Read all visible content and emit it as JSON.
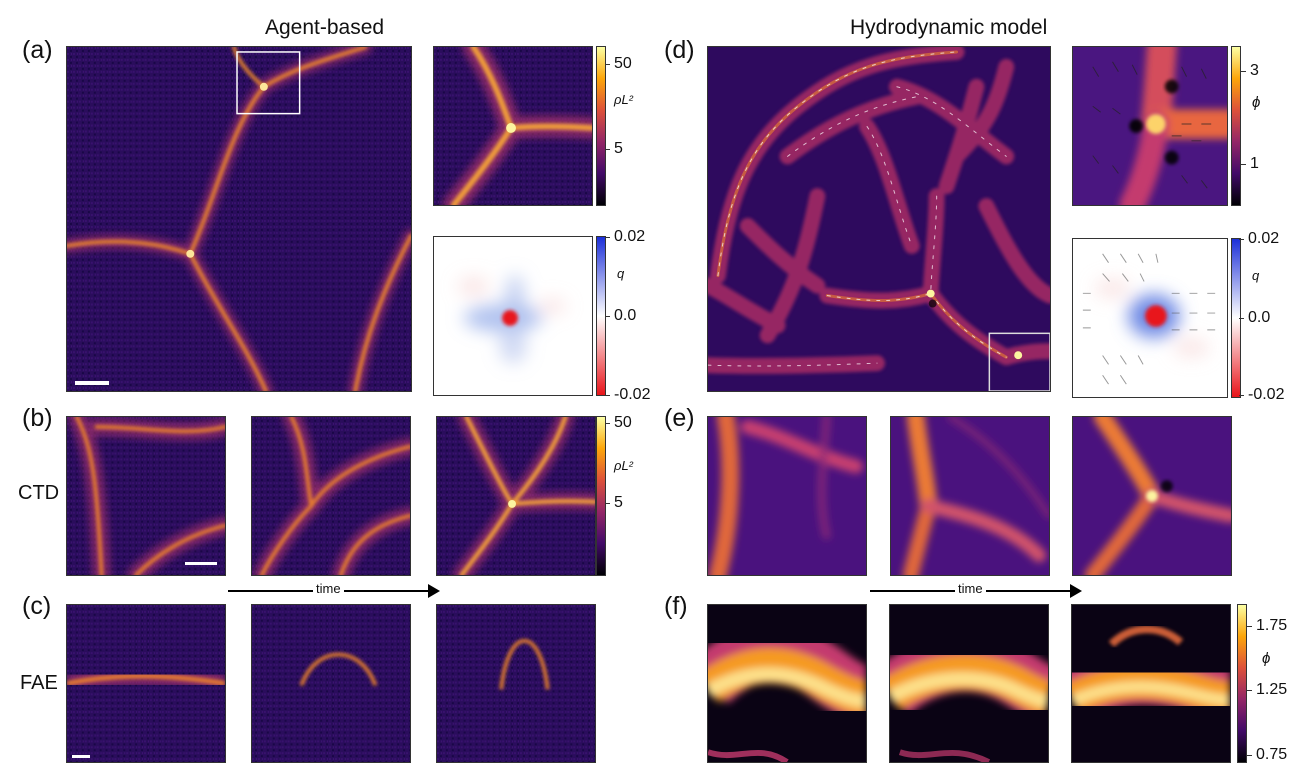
{
  "titles": {
    "left": "Agent-based",
    "right": "Hydrodynamic model"
  },
  "panel_labels": {
    "a": "(a)",
    "b": "(b)",
    "c": "(c)",
    "d": "(d)",
    "e": "(e)",
    "f": "(f)"
  },
  "row_labels": {
    "ctd": "CTD",
    "fae": "FAE"
  },
  "time_label": "time",
  "colorbars": {
    "a_density": {
      "label": "ρL²",
      "ticks": [
        "50",
        "5"
      ]
    },
    "a_q": {
      "label": "q",
      "ticks": [
        "0.02",
        "0.0",
        "-0.02"
      ]
    },
    "b_density": {
      "label": "ρL²",
      "ticks": [
        "50",
        "5"
      ]
    },
    "d_phi": {
      "label": "ϕ",
      "ticks": [
        "3",
        "1"
      ]
    },
    "d_q": {
      "label": "q",
      "ticks": [
        "0.02",
        "0.0",
        "-0.02"
      ]
    },
    "f_phi": {
      "label": "ϕ",
      "ticks": [
        "1.75",
        "1.25",
        "0.75"
      ]
    }
  },
  "colors": {
    "inferno_dark": "#1c0a4a",
    "inferno_mid": "#c4386a",
    "inferno_bright": "#f99d1c",
    "inferno_top": "#fcf4a0",
    "q_pos": "#1d4fd1",
    "q_neg": "#e01616"
  }
}
